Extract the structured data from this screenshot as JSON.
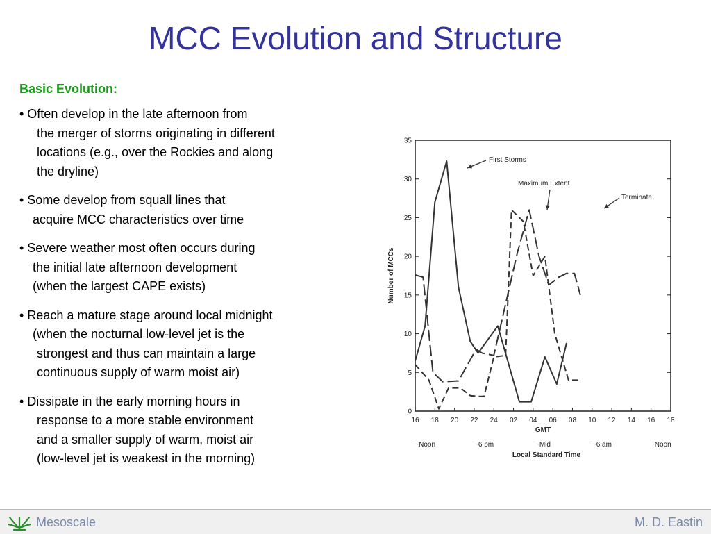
{
  "slide": {
    "title": "MCC Evolution and Structure"
  },
  "content": {
    "heading": "Basic Evolution:",
    "bullets": [
      {
        "lines": [
          "• Often develop in the late afternoon from",
          "the merger of storms originating in different",
          "locations (e.g., over the Rockies and along",
          "the dryline)"
        ]
      },
      {
        "lines": [
          "• Some develop from squall lines that",
          "acquire MCC characteristics over time"
        ]
      },
      {
        "lines": [
          "• Severe weather most often occurs during",
          "the initial late afternoon development",
          "(when the largest CAPE exists)"
        ]
      },
      {
        "lines": [
          "• Reach a mature stage around local midnight",
          "(when the nocturnal low-level jet is the",
          "strongest and thus can maintain a large",
          "continuous supply of warm moist air)"
        ]
      },
      {
        "lines": [
          "• Dissipate in the early morning hours in",
          "response to a more stable environment",
          "and a smaller supply of warm, moist air",
          "(low-level jet is weakest in the morning)"
        ]
      }
    ]
  },
  "footer": {
    "left": "Mesoscale",
    "right": "M. D. Eastin",
    "logo_icon": "lotus-icon",
    "logo_color": "#2e8b2e"
  },
  "chart_data": {
    "type": "line",
    "xlabel": "GMT",
    "ylabel": "Number of MCCs",
    "ylim": [
      0,
      35
    ],
    "yticks": [
      "0",
      "5",
      "10",
      "15",
      "20",
      "25",
      "30",
      "35"
    ],
    "x_ticks": [
      "16",
      "18",
      "20",
      "22",
      "24",
      "02",
      "04",
      "06",
      "08",
      "10",
      "12",
      "14",
      "16",
      "18"
    ],
    "secondary_xlabel": "Local Standard Time",
    "secondary_xticks": [
      {
        "label": "~Noon",
        "at": 0.5
      },
      {
        "label": "~6 pm",
        "at": 3.5
      },
      {
        "label": "~Mid",
        "at": 6.5
      },
      {
        "label": "~6 am",
        "at": 9.5
      },
      {
        "label": "~Noon",
        "at": 12.5
      }
    ],
    "grid": false,
    "series": [
      {
        "name": "First Storms",
        "style": "solid",
        "points": [
          [
            0,
            6.5
          ],
          [
            0.5,
            11
          ],
          [
            1,
            27
          ],
          [
            1.6,
            32.3
          ],
          [
            2.2,
            16
          ],
          [
            2.8,
            9
          ],
          [
            3.2,
            7.5
          ],
          [
            4.2,
            11
          ],
          [
            5.3,
            1.2
          ],
          [
            5.9,
            1.2
          ],
          [
            6.6,
            7
          ],
          [
            7.2,
            3.5
          ],
          [
            7.7,
            8.8
          ]
        ]
      },
      {
        "name": "Maximum Extent",
        "style": "dash",
        "points": [
          [
            0,
            6
          ],
          [
            0.7,
            4
          ],
          [
            1.2,
            0.3
          ],
          [
            1.7,
            3
          ],
          [
            2.3,
            3
          ],
          [
            2.8,
            2
          ],
          [
            3.2,
            1.9
          ],
          [
            3.5,
            1.9
          ],
          [
            4.0,
            7
          ],
          [
            4.6,
            7.2
          ],
          [
            4.9,
            26
          ],
          [
            5.5,
            24.5
          ],
          [
            6.0,
            17.5
          ],
          [
            6.6,
            20
          ],
          [
            7.1,
            10
          ],
          [
            7.8,
            4
          ],
          [
            8.3,
            4
          ]
        ]
      },
      {
        "name": "Terminate",
        "style": "longdash",
        "points": [
          [
            0,
            17.6
          ],
          [
            0.4,
            17.3
          ],
          [
            0.9,
            5
          ],
          [
            1.4,
            3.8
          ],
          [
            2.2,
            3.9
          ],
          [
            3.1,
            8
          ],
          [
            3.4,
            7.5
          ],
          [
            4.0,
            7.2
          ],
          [
            5.2,
            20.5
          ],
          [
            5.8,
            26
          ],
          [
            6.3,
            20
          ],
          [
            6.8,
            16.3
          ],
          [
            7.3,
            17.3
          ],
          [
            7.7,
            17.8
          ],
          [
            8.1,
            17.8
          ],
          [
            8.4,
            15
          ]
        ]
      }
    ],
    "annotations": [
      {
        "text": "First Storms",
        "series": "First Storms"
      },
      {
        "text": "Maximum Extent",
        "series": "Maximum Extent"
      },
      {
        "text": "Terminate",
        "series": "Terminate"
      }
    ]
  }
}
